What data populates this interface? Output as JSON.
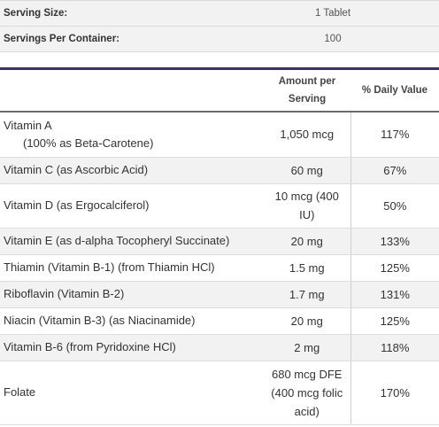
{
  "serving": {
    "size_label": "Serving Size:",
    "size_value": "1 Tablet",
    "servings_label": "Servings Per Container:",
    "servings_value": "100"
  },
  "facts": {
    "headers": {
      "nutrient": "",
      "amount": "Amount per Serving",
      "dv": "% Daily Value"
    },
    "rows": [
      {
        "name": "Vitamin A",
        "sub": "(100% as Beta-Carotene)",
        "amount": "1,050 mcg",
        "dv": "117%"
      },
      {
        "name": "Vitamin C (as Ascorbic Acid)",
        "amount": "60 mg",
        "dv": "67%"
      },
      {
        "name": "Vitamin D (as Ergocalciferol)",
        "amount": "10 mcg (400 IU)",
        "dv": "50%"
      },
      {
        "name": "Vitamin E (as d-alpha Tocopheryl Succinate)",
        "amount": "20 mg",
        "dv": "133%"
      },
      {
        "name": "Thiamin (Vitamin B-1) (from Thiamin HCl)",
        "amount": "1.5 mg",
        "dv": "125%"
      },
      {
        "name": "Riboflavin (Vitamin B-2)",
        "amount": "1.7 mg",
        "dv": "131%"
      },
      {
        "name": "Niacin (Vitamin B-3) (as Niacinamide)",
        "amount": "20 mg",
        "dv": "125%"
      },
      {
        "name": "Vitamin B-6 (from Pyridoxine HCl)",
        "amount": "2 mg",
        "dv": "118%"
      },
      {
        "name": "Folate",
        "amount": "680 mcg DFE (400 mcg folic acid)",
        "dv": "170%"
      }
    ]
  }
}
